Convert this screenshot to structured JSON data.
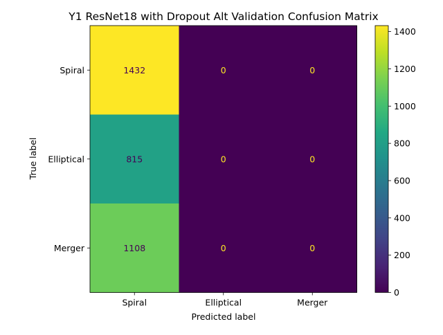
{
  "chart_data": {
    "type": "heatmap",
    "title": "Y1 ResNet18 with Dropout Alt Validation Confusion Matrix",
    "xlabel": "Predicted label",
    "ylabel": "True label",
    "x_categories": [
      "Spiral",
      "Elliptical",
      "Merger"
    ],
    "y_categories": [
      "Spiral",
      "Elliptical",
      "Merger"
    ],
    "values": [
      [
        1432,
        0,
        0
      ],
      [
        815,
        0,
        0
      ],
      [
        1108,
        0,
        0
      ]
    ],
    "colormap": "viridis",
    "colorbar": {
      "range": [
        0,
        1432
      ],
      "ticks": [
        0,
        200,
        400,
        600,
        800,
        1000,
        1200,
        1400
      ]
    },
    "grid": false,
    "text_colors": {
      "dark_cell": "#fde725",
      "light_cell": "#440154"
    }
  }
}
